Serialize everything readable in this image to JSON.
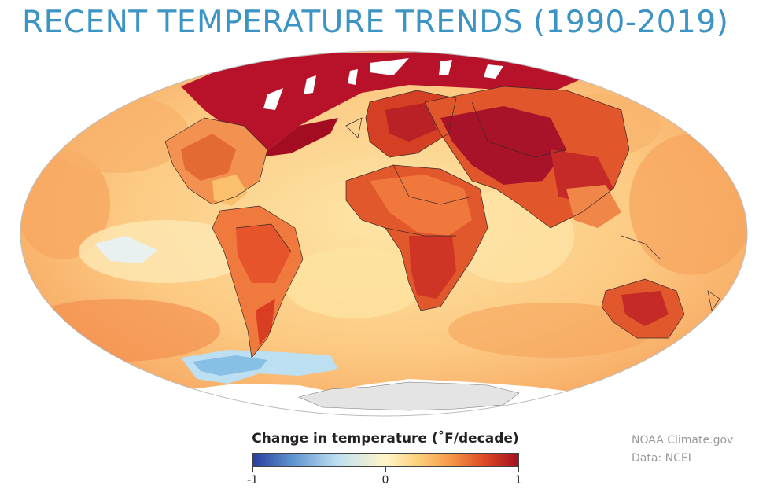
{
  "title": "RECENT TEMPERATURE TRENDS (1990-2019)",
  "legend": {
    "title": "Change in temperature (˚F/decade)",
    "ticks": [
      "-1",
      "0",
      "1"
    ],
    "color_stops": [
      "#2a3b9c",
      "#5a8fcc",
      "#bfe0f2",
      "#fff6c8",
      "#fdd07a",
      "#f59a4a",
      "#dc4a22",
      "#a30d22"
    ]
  },
  "credits": {
    "line1": "NOAA Climate.gov",
    "line2": "Data: NCEI"
  },
  "colors": {
    "title": "#3c94c4",
    "antarctica": "#e4e4e4",
    "ocean_base": "#fbbf79"
  }
}
